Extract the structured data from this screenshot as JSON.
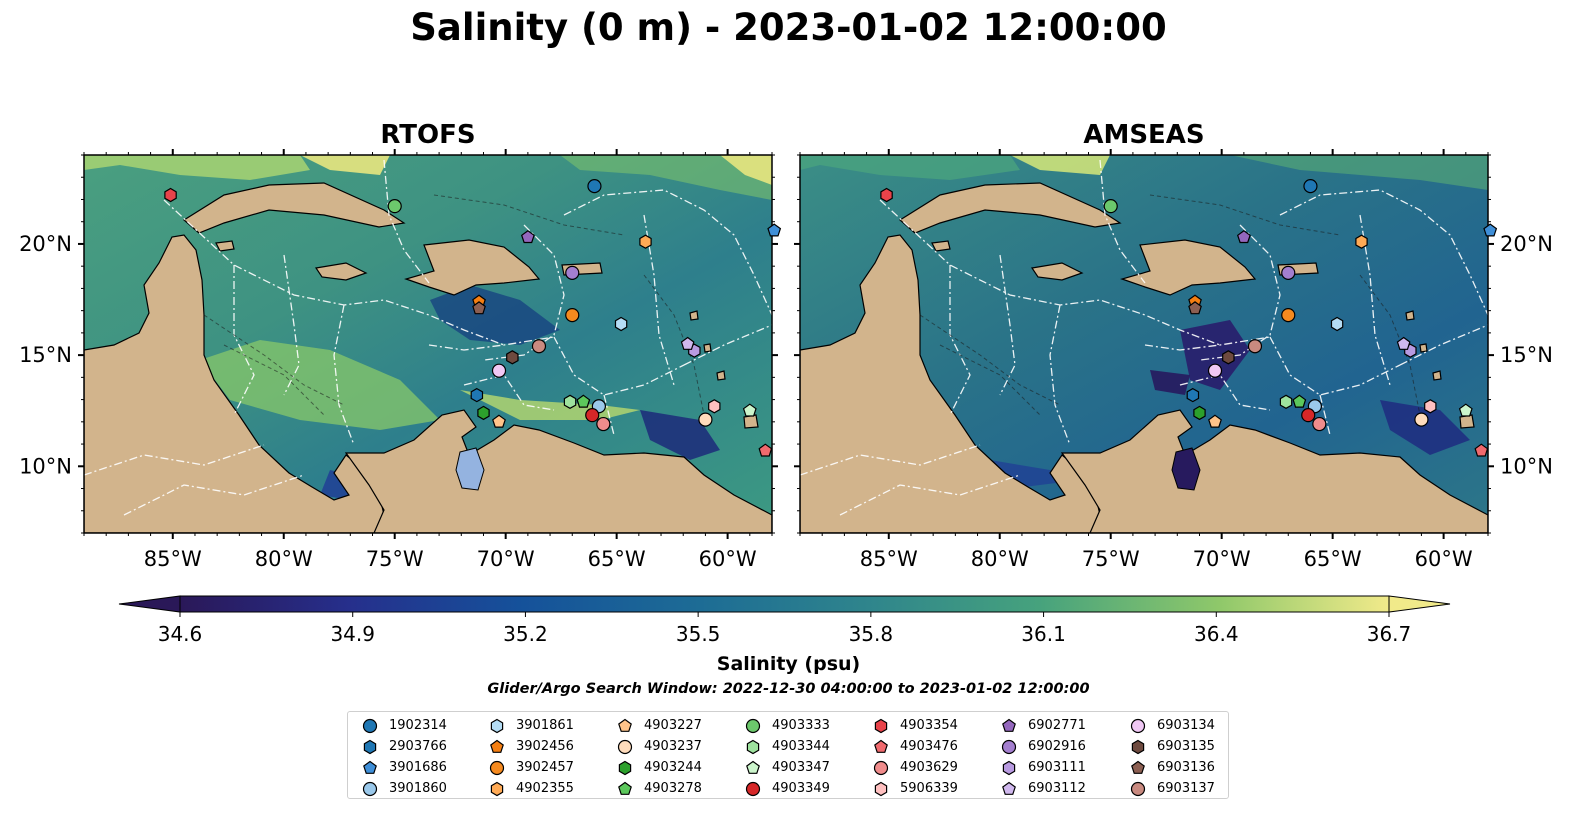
{
  "title": "Salinity (0 m) - 2023-01-02 12:00:00",
  "panels": [
    {
      "title": "RTOFS"
    },
    {
      "title": "AMSEAS"
    }
  ],
  "axes": {
    "lon_ticks": [
      "85°W",
      "80°W",
      "75°W",
      "70°W",
      "65°W",
      "60°W"
    ],
    "lat_ticks": [
      "20°N",
      "15°N",
      "10°N"
    ],
    "lon_values": [
      -85,
      -80,
      -75,
      -70,
      -65,
      -60
    ],
    "lat_values": [
      20,
      15,
      10
    ],
    "lon_range": [
      -89,
      -58
    ],
    "lat_range": [
      7,
      24
    ]
  },
  "colorbar": {
    "label": "Salinity (psu)",
    "tick_labels": [
      "34.6",
      "34.9",
      "35.2",
      "35.5",
      "35.8",
      "36.1",
      "36.4",
      "36.7"
    ],
    "min": 34.6,
    "max": 36.7,
    "extend": "both",
    "colormap": [
      "#2a1858",
      "#1f3b96",
      "#16639a",
      "#2c7f8e",
      "#3f9a80",
      "#6cb869",
      "#b5d86e",
      "#f1ea8a"
    ]
  },
  "search_window": "Glider/Argo Search Window: 2022-12-30 04:00:00 to 2023-01-02 12:00:00",
  "colors": {
    "land": "#d2b48c",
    "lake": "#94b3e0",
    "eez_line": "#ffffff"
  },
  "floats": [
    {
      "id": "1902314",
      "marker": "circle",
      "color": "#1f77b4",
      "lon": -66.0,
      "lat": 22.6
    },
    {
      "id": "2903766",
      "marker": "hexagon",
      "color": "#1f77b4",
      "lon": -71.3,
      "lat": 13.2
    },
    {
      "id": "3901686",
      "marker": "pentagon",
      "color": "#3f8fd8",
      "lon": -57.9,
      "lat": 20.6
    },
    {
      "id": "3901860",
      "marker": "circle",
      "color": "#9ac8ea",
      "lon": -65.8,
      "lat": 12.7
    },
    {
      "id": "3901861",
      "marker": "hexagon",
      "color": "#b4dcf4",
      "lon": -64.8,
      "lat": 16.4
    },
    {
      "id": "3902456",
      "marker": "pentagon",
      "color": "#f57f12",
      "lon": -71.2,
      "lat": 17.4
    },
    {
      "id": "3902457",
      "marker": "circle",
      "color": "#f58a1f",
      "lon": -67.0,
      "lat": 16.8
    },
    {
      "id": "4902355",
      "marker": "hexagon",
      "color": "#ffaa55",
      "lon": -63.7,
      "lat": 20.1
    },
    {
      "id": "4903227",
      "marker": "pentagon",
      "color": "#ffc48a",
      "lon": -70.3,
      "lat": 12.0
    },
    {
      "id": "4903237",
      "marker": "circle",
      "color": "#ffdcbc",
      "lon": -61.0,
      "lat": 12.1
    },
    {
      "id": "4903244",
      "marker": "hexagon",
      "color": "#2ca02c",
      "lon": -71.0,
      "lat": 12.4
    },
    {
      "id": "4903278",
      "marker": "pentagon",
      "color": "#5cc85c",
      "lon": -66.5,
      "lat": 12.9
    },
    {
      "id": "4903333",
      "marker": "circle",
      "color": "#6cc86c",
      "lon": -75.0,
      "lat": 21.7
    },
    {
      "id": "4903344",
      "marker": "hexagon",
      "color": "#9ee29e",
      "lon": -67.1,
      "lat": 12.9
    },
    {
      "id": "4903347",
      "marker": "pentagon",
      "color": "#ccf5cc",
      "lon": -59.0,
      "lat": 12.5
    },
    {
      "id": "4903349",
      "marker": "circle",
      "color": "#d62728",
      "lon": -66.1,
      "lat": 12.3
    },
    {
      "id": "4903354",
      "marker": "hexagon",
      "color": "#e8434a",
      "lon": -85.1,
      "lat": 22.2
    },
    {
      "id": "4903476",
      "marker": "pentagon",
      "color": "#f06a6e",
      "lon": -58.3,
      "lat": 10.7
    },
    {
      "id": "4903629",
      "marker": "circle",
      "color": "#f08c8c",
      "lon": -65.6,
      "lat": 11.9
    },
    {
      "id": "5906339",
      "marker": "hexagon",
      "color": "#ffc0c0",
      "lon": -60.6,
      "lat": 12.7
    },
    {
      "id": "6902771",
      "marker": "pentagon",
      "color": "#9467bd",
      "lon": -69.0,
      "lat": 20.3
    },
    {
      "id": "6902916",
      "marker": "circle",
      "color": "#a47fcf",
      "lon": -67.0,
      "lat": 18.7
    },
    {
      "id": "6903111",
      "marker": "hexagon",
      "color": "#b89ae0",
      "lon": -61.5,
      "lat": 15.2
    },
    {
      "id": "6903112",
      "marker": "pentagon",
      "color": "#d0b8ee",
      "lon": -61.8,
      "lat": 15.5
    },
    {
      "id": "6903134",
      "marker": "circle",
      "color": "#f0c8f4",
      "lon": -70.3,
      "lat": 14.3
    },
    {
      "id": "6903135",
      "marker": "hexagon",
      "color": "#6e4a3f",
      "lon": -69.7,
      "lat": 14.9
    },
    {
      "id": "6903136",
      "marker": "pentagon",
      "color": "#8c5f52",
      "lon": -71.2,
      "lat": 17.1
    },
    {
      "id": "6903137",
      "marker": "circle",
      "color": "#c98a80",
      "lon": -68.5,
      "lat": 15.4
    }
  ]
}
